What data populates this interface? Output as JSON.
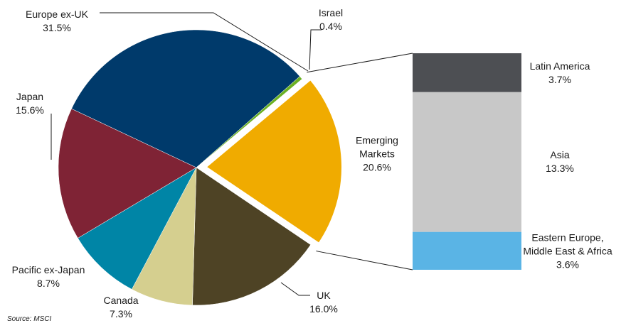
{
  "chart_data": {
    "type": "pie",
    "categories": [
      "Emerging Markets",
      "UK",
      "Canada",
      "Pacific ex-Japan",
      "Japan",
      "Europe ex-UK",
      "Israel"
    ],
    "values": [
      20.6,
      16.0,
      7.3,
      8.7,
      15.6,
      31.5,
      0.4
    ],
    "value_labels": [
      "20.6%",
      "16.0%",
      "7.3%",
      "8.7%",
      "15.6%",
      "31.5%",
      "0.4%"
    ],
    "colors": [
      "#f0ab00",
      "#4e4325",
      "#d5cf8f",
      "#0085a6",
      "#7f2335",
      "#003a6b",
      "#6ab023"
    ],
    "exploded_slice": 0,
    "breakdown": {
      "categories": [
        "Latin America",
        "Asia",
        "Eastern Europe, Middle East & Africa"
      ],
      "values": [
        3.7,
        13.3,
        3.6
      ],
      "value_labels": [
        "3.7%",
        "13.3%",
        "3.6%"
      ],
      "colors": [
        "#4d4f53",
        "#c8c8c8",
        "#5ab4e5"
      ]
    },
    "source": "Source: MSCI"
  }
}
